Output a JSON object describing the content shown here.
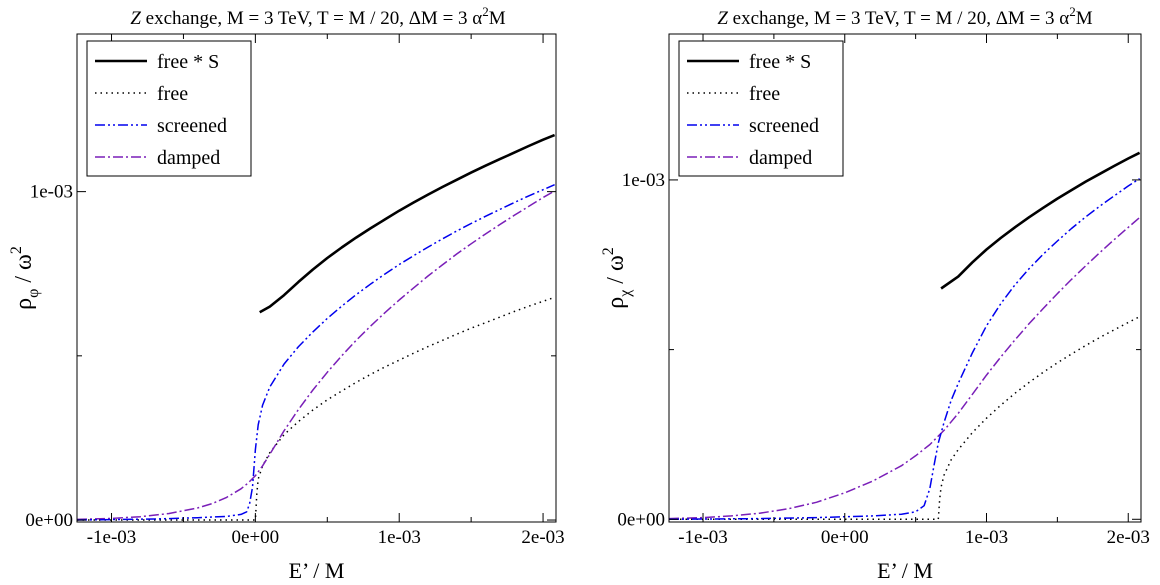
{
  "chart_data": [
    {
      "type": "line",
      "title": "Z exchange, M = 3 TeV, T = M / 20, ΔM = 3 α²M",
      "title_parts": {
        "italic": "Z",
        "rest": " exchange, M = 3 TeV, T = M / 20, ΔM = 3 α",
        "sup": "2",
        "tail": "M"
      },
      "xlabel": "E’ / M",
      "ylabel": {
        "base": "ρ",
        "sub": "φ",
        "rest": " / ω",
        "sup": "2"
      },
      "xlim": [
        -0.00124,
        0.00209
      ],
      "ylim": [
        -6e-06,
        0.00148
      ],
      "xticks": [
        {
          "value": -0.001,
          "label": "-1e-03"
        },
        {
          "value": 0.0,
          "label": "0e+00"
        },
        {
          "value": 0.001,
          "label": "1e-03"
        },
        {
          "value": 0.002,
          "label": "2e-03"
        }
      ],
      "yticks": [
        {
          "value": 0.0,
          "label": "0e+00"
        },
        {
          "value": 0.001,
          "label": "1e-03"
        }
      ],
      "legend_position": "top-left",
      "series": [
        {
          "name": "free * S",
          "color": "#000000",
          "width": 2.6,
          "dash": "",
          "points": [
            [
              3e-05,
              0.000633
            ],
            [
              0.0001,
              0.00065
            ],
            [
              0.0002,
              0.000685
            ],
            [
              0.0003,
              0.000725
            ],
            [
              0.0004,
              0.000763
            ],
            [
              0.0005,
              0.000798
            ],
            [
              0.0006,
              0.00083
            ],
            [
              0.0007,
              0.00086
            ],
            [
              0.0008,
              0.000888
            ],
            [
              0.0009,
              0.000915
            ],
            [
              0.001,
              0.000942
            ],
            [
              0.0011,
              0.000967
            ],
            [
              0.0012,
              0.000991
            ],
            [
              0.0013,
              0.001014
            ],
            [
              0.0014,
              0.001036
            ],
            [
              0.0015,
              0.001058
            ],
            [
              0.0016,
              0.001079
            ],
            [
              0.0017,
              0.001099
            ],
            [
              0.0018,
              0.001119
            ],
            [
              0.0019,
              0.001139
            ],
            [
              0.002,
              0.001158
            ],
            [
              0.00208,
              0.001172
            ]
          ]
        },
        {
          "name": "free",
          "color": "#000000",
          "width": 1.5,
          "dash": "1.5 4",
          "points": [
            [
              -0.00124,
              0.0
            ],
            [
              0.0,
              0.0
            ],
            [
              1e-05,
              8e-05
            ],
            [
              2e-05,
              0.000125
            ],
            [
              5e-05,
              0.000165
            ],
            [
              0.0001,
              0.000205
            ],
            [
              0.0002,
              0.00026
            ],
            [
              0.0003,
              0.0003
            ],
            [
              0.0004,
              0.000335
            ],
            [
              0.0005,
              0.000366
            ],
            [
              0.0006,
              0.000393
            ],
            [
              0.0007,
              0.000419
            ],
            [
              0.0008,
              0.000443
            ],
            [
              0.0009,
              0.000466
            ],
            [
              0.001,
              0.000487
            ],
            [
              0.0011,
              0.000508
            ],
            [
              0.0012,
              0.000528
            ],
            [
              0.0013,
              0.000547
            ],
            [
              0.0014,
              0.000566
            ],
            [
              0.0015,
              0.000584
            ],
            [
              0.0016,
              0.000601
            ],
            [
              0.0017,
              0.000618
            ],
            [
              0.0018,
              0.000635
            ],
            [
              0.0019,
              0.000651
            ],
            [
              0.002,
              0.000666
            ],
            [
              0.00208,
              0.000678
            ]
          ]
        },
        {
          "name": "screened",
          "color": "#0000ee",
          "width": 1.5,
          "dash": "10 3 2 3 2 3",
          "points": [
            [
              -0.00124,
              0.0
            ],
            [
              -0.0007,
              3e-06
            ],
            [
              -0.0004,
              7e-06
            ],
            [
              -0.0002,
              1.1e-05
            ],
            [
              -0.0001,
              1.7e-05
            ],
            [
              -6e-05,
              2.5e-05
            ],
            [
              -4e-05,
              5e-05
            ],
            [
              -2e-05,
              0.0001
            ],
            [
              -1e-05,
              0.000155
            ],
            [
              0.0,
              0.000215
            ],
            [
              2e-05,
              0.00029
            ],
            [
              5e-05,
              0.00035
            ],
            [
              0.0001,
              0.000405
            ],
            [
              0.0002,
              0.000475
            ],
            [
              0.0003,
              0.000528
            ],
            [
              0.0004,
              0.000573
            ],
            [
              0.0005,
              0.000614
            ],
            [
              0.0006,
              0.000651
            ],
            [
              0.0007,
              0.000686
            ],
            [
              0.0008,
              0.000718
            ],
            [
              0.0009,
              0.000749
            ],
            [
              0.001,
              0.000778
            ],
            [
              0.0011,
              0.000805
            ],
            [
              0.0012,
              0.000831
            ],
            [
              0.0013,
              0.000856
            ],
            [
              0.0014,
              0.00088
            ],
            [
              0.0015,
              0.000903
            ],
            [
              0.0016,
              0.000925
            ],
            [
              0.0017,
              0.000946
            ],
            [
              0.0018,
              0.000967
            ],
            [
              0.0019,
              0.000987
            ],
            [
              0.002,
              0.001006
            ],
            [
              0.00208,
              0.001021
            ]
          ]
        },
        {
          "name": "damped",
          "color": "#7a1fb8",
          "width": 1.5,
          "dash": "10 3 2 3",
          "points": [
            [
              -0.00124,
              2e-06
            ],
            [
              -0.001,
              5e-06
            ],
            [
              -0.0008,
              1e-05
            ],
            [
              -0.0006,
              2e-05
            ],
            [
              -0.0004,
              3.7e-05
            ],
            [
              -0.0003,
              5e-05
            ],
            [
              -0.0002,
              6.9e-05
            ],
            [
              -0.0001,
              9.5e-05
            ],
            [
              -5e-05,
              0.000113
            ],
            [
              0.0,
              0.000135
            ],
            [
              5e-05,
              0.000165
            ],
            [
              0.0001,
              0.0002
            ],
            [
              0.0002,
              0.000272
            ],
            [
              0.0003,
              0.000337
            ],
            [
              0.0004,
              0.000396
            ],
            [
              0.0005,
              0.00045
            ],
            [
              0.0006,
              0.0005
            ],
            [
              0.0007,
              0.000547
            ],
            [
              0.0008,
              0.00059
            ],
            [
              0.0009,
              0.000631
            ],
            [
              0.001,
              0.00067
            ],
            [
              0.0011,
              0.000707
            ],
            [
              0.0012,
              0.000743
            ],
            [
              0.0013,
              0.000777
            ],
            [
              0.0014,
              0.00081
            ],
            [
              0.0015,
              0.000841
            ],
            [
              0.0016,
              0.000871
            ],
            [
              0.0017,
              0.0009
            ],
            [
              0.0018,
              0.000928
            ],
            [
              0.0019,
              0.000955
            ],
            [
              0.002,
              0.000982
            ],
            [
              0.00208,
              0.001002
            ]
          ]
        }
      ]
    },
    {
      "type": "line",
      "title": "Z exchange, M = 3 TeV, T = M / 20, ΔM = 3 α²M",
      "title_parts": {
        "italic": "Z",
        "rest": " exchange, M = 3 TeV, T = M / 20, ΔM = 3 α",
        "sup": "2",
        "tail": "M"
      },
      "xlabel": "E’ / M",
      "ylabel": {
        "base": "ρ",
        "sub": "χ",
        "rest": " / ω",
        "sup": "2"
      },
      "xlim": [
        -0.00124,
        0.00209
      ],
      "ylim": [
        -8e-06,
        0.00143
      ],
      "xticks": [
        {
          "value": -0.001,
          "label": "-1e-03"
        },
        {
          "value": 0.0,
          "label": "0e+00"
        },
        {
          "value": 0.001,
          "label": "1e-03"
        },
        {
          "value": 0.002,
          "label": "2e-03"
        }
      ],
      "yticks": [
        {
          "value": 0.0,
          "label": "0e+00"
        },
        {
          "value": 0.001,
          "label": "1e-03"
        }
      ],
      "legend_position": "top-left",
      "series": [
        {
          "name": "free * S",
          "color": "#000000",
          "width": 2.6,
          "dash": "",
          "points": [
            [
              0.00068,
              0.00068
            ],
            [
              0.0008,
              0.000715
            ],
            [
              0.0009,
              0.000757
            ],
            [
              0.001,
              0.000795
            ],
            [
              0.0011,
              0.000829
            ],
            [
              0.0012,
              0.00086
            ],
            [
              0.0013,
              0.00089
            ],
            [
              0.0014,
              0.000918
            ],
            [
              0.0015,
              0.000945
            ],
            [
              0.0016,
              0.00097
            ],
            [
              0.0017,
              0.000995
            ],
            [
              0.0018,
              0.001018
            ],
            [
              0.0019,
              0.001041
            ],
            [
              0.002,
              0.001063
            ],
            [
              0.00208,
              0.00108
            ]
          ]
        },
        {
          "name": "free",
          "color": "#000000",
          "width": 1.5,
          "dash": "1.5 4",
          "points": [
            [
              -0.00124,
              0.0
            ],
            [
              0.00066,
              0.0
            ],
            [
              0.00067,
              6e-05
            ],
            [
              0.00068,
              9.5e-05
            ],
            [
              0.0007,
              0.00013
            ],
            [
              0.00075,
              0.000175
            ],
            [
              0.0008,
              0.000205
            ],
            [
              0.0009,
              0.000255
            ],
            [
              0.001,
              0.000298
            ],
            [
              0.0011,
              0.000336
            ],
            [
              0.0012,
              0.000371
            ],
            [
              0.0013,
              0.000403
            ],
            [
              0.0014,
              0.000433
            ],
            [
              0.0015,
              0.000461
            ],
            [
              0.0016,
              0.000487
            ],
            [
              0.0017,
              0.000512
            ],
            [
              0.0018,
              0.000536
            ],
            [
              0.0019,
              0.000558
            ],
            [
              0.002,
              0.00058
            ],
            [
              0.00208,
              0.000597
            ]
          ]
        },
        {
          "name": "screened",
          "color": "#0000ee",
          "width": 1.5,
          "dash": "10 3 2 3 2 3",
          "points": [
            [
              -0.00124,
              0.0
            ],
            [
              -0.0006,
              2e-06
            ],
            [
              -0.0002,
              5e-06
            ],
            [
              0.0002,
              1e-05
            ],
            [
              0.0004,
              1.5e-05
            ],
            [
              0.0005,
              2.2e-05
            ],
            [
              0.00056,
              4e-05
            ],
            [
              0.0006,
              9e-05
            ],
            [
              0.00063,
              0.00016
            ],
            [
              0.00066,
              0.000225
            ],
            [
              0.0007,
              0.000285
            ],
            [
              0.00075,
              0.00035
            ],
            [
              0.0008,
              0.0004
            ],
            [
              0.0009,
              0.00049
            ],
            [
              0.001,
              0.00057
            ],
            [
              0.0011,
              0.000635
            ],
            [
              0.0012,
              0.00069
            ],
            [
              0.0013,
              0.000738
            ],
            [
              0.0014,
              0.000781
            ],
            [
              0.0015,
              0.00082
            ],
            [
              0.0016,
              0.000857
            ],
            [
              0.0017,
              0.000891
            ],
            [
              0.0018,
              0.000923
            ],
            [
              0.0019,
              0.000953
            ],
            [
              0.002,
              0.000982
            ],
            [
              0.00208,
              0.001004
            ]
          ]
        },
        {
          "name": "damped",
          "color": "#7a1fb8",
          "width": 1.5,
          "dash": "10 3 2 3",
          "points": [
            [
              -0.00124,
              2e-06
            ],
            [
              -0.001,
              5e-06
            ],
            [
              -0.0008,
              1e-05
            ],
            [
              -0.0006,
              1.8e-05
            ],
            [
              -0.0004,
              3.1e-05
            ],
            [
              -0.0002,
              5e-05
            ],
            [
              0.0,
              7.8e-05
            ],
            [
              0.0002,
              0.000113
            ],
            [
              0.0004,
              0.000158
            ],
            [
              0.0005,
              0.000187
            ],
            [
              0.0006,
              0.00022
            ],
            [
              0.0007,
              0.000262
            ],
            [
              0.0008,
              0.000312
            ],
            [
              0.0009,
              0.000368
            ],
            [
              0.001,
              0.000425
            ],
            [
              0.0011,
              0.000478
            ],
            [
              0.0012,
              0.000528
            ],
            [
              0.0013,
              0.000576
            ],
            [
              0.0014,
              0.000621
            ],
            [
              0.0015,
              0.000665
            ],
            [
              0.0016,
              0.000707
            ],
            [
              0.0017,
              0.000747
            ],
            [
              0.0018,
              0.000786
            ],
            [
              0.0019,
              0.000824
            ],
            [
              0.002,
              0.00086
            ],
            [
              0.00208,
              0.000889
            ]
          ]
        }
      ]
    }
  ]
}
